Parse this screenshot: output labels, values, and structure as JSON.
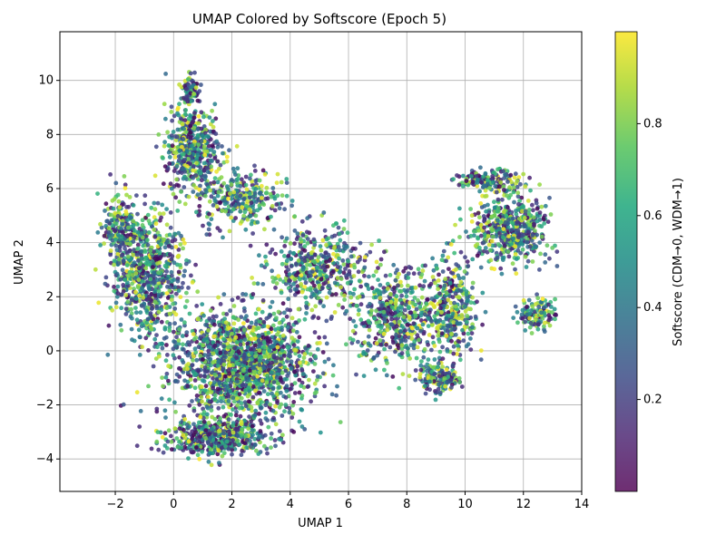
{
  "chart_data": {
    "type": "scatter",
    "title": "UMAP Colored by Softscore (Epoch 5)",
    "xlabel": "UMAP 1",
    "ylabel": "UMAP 2",
    "xlim": [
      -3.9,
      14.0
    ],
    "ylim": [
      -5.2,
      11.8
    ],
    "xticks": [
      -2,
      0,
      2,
      4,
      6,
      8,
      10,
      12,
      14
    ],
    "yticks": [
      -4,
      -2,
      0,
      2,
      4,
      6,
      8,
      10
    ],
    "grid": true,
    "point_count_shown": 6000,
    "colormap": "viridis",
    "colorbar": {
      "label": "Softscore (CDM→0, WDM→1)",
      "range": [
        0.0,
        1.0
      ],
      "ticks": [
        0.2,
        0.4,
        0.6,
        0.8
      ]
    },
    "clusters": [
      {
        "x": 2.3,
        "y": -0.5,
        "sx": 2.2,
        "sy": 1.8,
        "n": 1600
      },
      {
        "x": 1.5,
        "y": -3.2,
        "sx": 1.6,
        "sy": 0.6,
        "n": 500
      },
      {
        "x": -0.9,
        "y": 2.8,
        "sx": 1.1,
        "sy": 2.0,
        "n": 700
      },
      {
        "x": -1.8,
        "y": 4.5,
        "sx": 0.6,
        "sy": 1.3,
        "n": 200
      },
      {
        "x": 0.6,
        "y": 7.5,
        "sx": 0.8,
        "sy": 1.4,
        "n": 450
      },
      {
        "x": 0.6,
        "y": 9.6,
        "sx": 0.25,
        "sy": 0.5,
        "n": 80
      },
      {
        "x": 2.2,
        "y": 5.6,
        "sx": 1.3,
        "sy": 1.0,
        "n": 300
      },
      {
        "x": 5.0,
        "y": 3.0,
        "sx": 1.5,
        "sy": 1.4,
        "n": 450
      },
      {
        "x": 7.6,
        "y": 1.2,
        "sx": 1.2,
        "sy": 1.6,
        "n": 450
      },
      {
        "x": 9.5,
        "y": 1.5,
        "sx": 0.8,
        "sy": 1.6,
        "n": 350
      },
      {
        "x": 9.1,
        "y": -1.0,
        "sx": 0.6,
        "sy": 0.5,
        "n": 150
      },
      {
        "x": 11.5,
        "y": 4.5,
        "sx": 1.3,
        "sy": 1.1,
        "n": 550
      },
      {
        "x": 10.8,
        "y": 6.3,
        "sx": 1.0,
        "sy": 0.35,
        "n": 150
      },
      {
        "x": 12.5,
        "y": 1.4,
        "sx": 0.6,
        "sy": 0.5,
        "n": 120
      }
    ]
  }
}
